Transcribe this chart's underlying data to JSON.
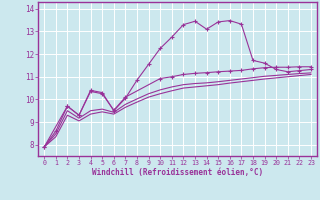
{
  "xlabel": "Windchill (Refroidissement éolien,°C)",
  "bg_color": "#cce8ee",
  "grid_color": "#ffffff",
  "line_color": "#993399",
  "axis_color": "#993399",
  "xlim": [
    -0.5,
    23.5
  ],
  "ylim": [
    7.5,
    14.3
  ],
  "yticks": [
    8,
    9,
    10,
    11,
    12,
    13,
    14
  ],
  "xticks": [
    0,
    1,
    2,
    3,
    4,
    5,
    6,
    7,
    8,
    9,
    10,
    11,
    12,
    13,
    14,
    15,
    16,
    17,
    18,
    19,
    20,
    21,
    22,
    23
  ],
  "line1_x": [
    0,
    1,
    2,
    3,
    4,
    5,
    6,
    7,
    8,
    9,
    10,
    11,
    12,
    13,
    14,
    15,
    16,
    17,
    18,
    19,
    20,
    21,
    22,
    23
  ],
  "line1_y": [
    7.9,
    8.6,
    9.7,
    9.3,
    10.4,
    10.3,
    9.5,
    10.05,
    10.85,
    11.55,
    12.25,
    12.75,
    13.3,
    13.45,
    13.1,
    13.42,
    13.48,
    13.32,
    11.72,
    11.6,
    11.32,
    11.22,
    11.27,
    11.32
  ],
  "line2_x": [
    0,
    2,
    3,
    4,
    5,
    6,
    7,
    10,
    11,
    12,
    13,
    14,
    15,
    16,
    17,
    18,
    19,
    20,
    21,
    22,
    23
  ],
  "line2_y": [
    7.9,
    9.7,
    9.3,
    10.35,
    10.25,
    9.52,
    10.1,
    10.92,
    11.0,
    11.1,
    11.15,
    11.18,
    11.22,
    11.25,
    11.28,
    11.35,
    11.4,
    11.42,
    11.42,
    11.44,
    11.44
  ],
  "line3_x": [
    0,
    1,
    2,
    3,
    4,
    5,
    6,
    7,
    8,
    9,
    10,
    11,
    12,
    13,
    14,
    15,
    16,
    17,
    18,
    19,
    20,
    21,
    22,
    23
  ],
  "line3_y": [
    7.9,
    8.35,
    9.3,
    9.05,
    9.35,
    9.45,
    9.35,
    9.65,
    9.88,
    10.1,
    10.25,
    10.38,
    10.5,
    10.55,
    10.6,
    10.65,
    10.72,
    10.78,
    10.84,
    10.9,
    10.95,
    11.0,
    11.05,
    11.1
  ],
  "line4_x": [
    0,
    1,
    2,
    3,
    4,
    5,
    6,
    7,
    8,
    9,
    10,
    11,
    12,
    13,
    14,
    15,
    16,
    17,
    18,
    19,
    20,
    21,
    22,
    23
  ],
  "line4_y": [
    7.9,
    8.48,
    9.5,
    9.17,
    9.5,
    9.57,
    9.43,
    9.78,
    10.02,
    10.25,
    10.42,
    10.55,
    10.65,
    10.7,
    10.73,
    10.78,
    10.84,
    10.9,
    10.96,
    11.02,
    11.06,
    11.1,
    11.14,
    11.17
  ]
}
